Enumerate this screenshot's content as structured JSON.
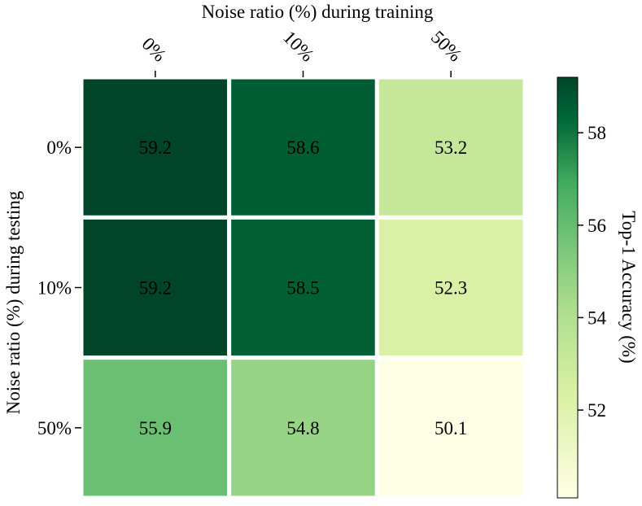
{
  "chart_data": {
    "type": "heatmap",
    "xlabel": "Noise ratio (%) during training",
    "ylabel": "Noise ratio (%) during testing",
    "x_categories": [
      "0%",
      "10%",
      "50%"
    ],
    "y_categories": [
      "0%",
      "10%",
      "50%"
    ],
    "values": [
      [
        59.2,
        58.6,
        53.2
      ],
      [
        59.2,
        58.5,
        52.3
      ],
      [
        55.9,
        54.8,
        50.1
      ]
    ],
    "colormap": "Greens",
    "colorbar": {
      "label": "Top-1 Accuracy (%)",
      "range": [
        50.1,
        59.2
      ],
      "ticks": [
        52,
        54,
        56,
        58
      ]
    },
    "x_tick_position": "top",
    "cell_text_colors": {
      "dark": "#ffffff",
      "light": "#000000"
    }
  }
}
